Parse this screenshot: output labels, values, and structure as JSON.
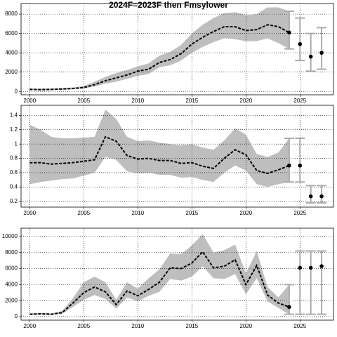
{
  "chart_data": [
    {
      "type": "line",
      "title": "2024F=2023F then Fmsylower",
      "x": [
        2000,
        2001,
        2002,
        2003,
        2004,
        2005,
        2006,
        2007,
        2008,
        2009,
        2010,
        2011,
        2012,
        2013,
        2014,
        2015,
        2016,
        2017,
        2018,
        2019,
        2020,
        2021,
        2022,
        2023,
        2024
      ],
      "values": [
        200,
        180,
        200,
        250,
        300,
        400,
        700,
        1100,
        1400,
        1700,
        2100,
        2300,
        3000,
        3300,
        3900,
        4900,
        5600,
        6200,
        6700,
        6700,
        6300,
        6400,
        6900,
        6700,
        6100
      ],
      "upper": [
        300,
        300,
        300,
        350,
        400,
        550,
        1000,
        1500,
        1900,
        2200,
        2600,
        2900,
        3700,
        4100,
        4800,
        6000,
        6900,
        7600,
        8100,
        8200,
        7900,
        8000,
        8700,
        8700,
        8300
      ],
      "lower": [
        150,
        120,
        150,
        180,
        220,
        300,
        500,
        800,
        1000,
        1300,
        1600,
        1800,
        2500,
        2700,
        3200,
        4000,
        4600,
        5100,
        5500,
        5400,
        5200,
        5200,
        5500,
        5000,
        4400
      ],
      "proj_x": [
        2025,
        2026,
        2027
      ],
      "proj_values": [
        4900,
        3600,
        4000
      ],
      "proj_lower": [
        3200,
        2100,
        2300
      ],
      "proj_upper": [
        7600,
        6000,
        6600
      ],
      "band_color": "#bebebe",
      "bar_color": "#aaaaaa",
      "color": "#000000",
      "xlim": [
        1999.2,
        2028.1
      ],
      "xticks": [
        2000,
        2005,
        2010,
        2015,
        2020,
        2025
      ],
      "ylim": [
        -350,
        9100
      ],
      "yticks": [
        0,
        2000,
        4000,
        6000,
        8000
      ],
      "grid": true
    },
    {
      "type": "line",
      "x": [
        2000,
        2001,
        2002,
        2003,
        2004,
        2005,
        2006,
        2007,
        2008,
        2009,
        2010,
        2011,
        2012,
        2013,
        2014,
        2015,
        2016,
        2017,
        2018,
        2019,
        2020,
        2021,
        2022,
        2023,
        2024
      ],
      "values": [
        0.74,
        0.74,
        0.72,
        0.73,
        0.74,
        0.76,
        0.78,
        1.1,
        1.04,
        0.84,
        0.79,
        0.8,
        0.77,
        0.77,
        0.73,
        0.74,
        0.69,
        0.66,
        0.8,
        0.92,
        0.85,
        0.63,
        0.59,
        0.64,
        0.7
      ],
      "upper": [
        1.27,
        1.2,
        1.1,
        1.08,
        1.08,
        1.09,
        1.1,
        1.48,
        1.35,
        1.1,
        1.04,
        1.05,
        1.02,
        1.0,
        0.98,
        1.0,
        0.95,
        0.92,
        1.05,
        1.22,
        1.13,
        0.86,
        0.82,
        0.88,
        1.08
      ],
      "lower": [
        0.44,
        0.47,
        0.49,
        0.51,
        0.52,
        0.56,
        0.6,
        0.82,
        0.78,
        0.62,
        0.59,
        0.6,
        0.57,
        0.57,
        0.53,
        0.54,
        0.5,
        0.47,
        0.6,
        0.7,
        0.63,
        0.44,
        0.4,
        0.44,
        0.47
      ],
      "proj_x": [
        2025,
        2026,
        2027
      ],
      "proj_values": [
        0.7,
        0.27,
        0.27
      ],
      "proj_lower": [
        0.47,
        0.18,
        0.18
      ],
      "proj_upper": [
        1.08,
        0.42,
        0.42
      ],
      "band_color": "#bebebe",
      "bar_color": "#aaaaaa",
      "color": "#000000",
      "xlim": [
        1999.2,
        2028.1
      ],
      "xticks": [
        2000,
        2005,
        2010,
        2015,
        2020,
        2025
      ],
      "ylim": [
        0.12,
        1.54
      ],
      "yticks": [
        0.2,
        0.4,
        0.6,
        0.8,
        1.0,
        1.2,
        1.4
      ],
      "grid": true
    },
    {
      "type": "line",
      "x": [
        2000,
        2001,
        2002,
        2003,
        2004,
        2005,
        2006,
        2007,
        2008,
        2009,
        2010,
        2011,
        2012,
        2013,
        2014,
        2015,
        2016,
        2017,
        2018,
        2019,
        2020,
        2021,
        2022,
        2023,
        2024
      ],
      "values": [
        300,
        350,
        300,
        500,
        1700,
        3000,
        3700,
        3100,
        1500,
        3200,
        2600,
        3400,
        4300,
        6100,
        6000,
        6700,
        8100,
        6100,
        6300,
        7100,
        4000,
        6400,
        2700,
        1700,
        1200
      ],
      "upper": [
        400,
        450,
        400,
        700,
        2300,
        4300,
        5000,
        4300,
        2100,
        4300,
        3500,
        4800,
        5900,
        7900,
        7800,
        8900,
        10300,
        8000,
        8300,
        9000,
        5400,
        8200,
        3700,
        2400,
        4000
      ],
      "lower": [
        200,
        250,
        200,
        350,
        1200,
        2100,
        2700,
        2200,
        1000,
        2400,
        1900,
        2600,
        3100,
        4700,
        4500,
        5000,
        6300,
        4800,
        4700,
        5300,
        2800,
        4800,
        1900,
        1100,
        300
      ],
      "proj_x": [
        2025,
        2026,
        2027
      ],
      "proj_values": [
        6100,
        6100,
        6300
      ],
      "proj_lower": [
        300,
        300,
        300
      ],
      "proj_upper": [
        8200,
        8200,
        8200
      ],
      "band_color": "#bebebe",
      "bar_color": "#aaaaaa",
      "color": "#000000",
      "xlim": [
        1999.2,
        2028.1
      ],
      "xticks": [
        2000,
        2005,
        2010,
        2015,
        2020,
        2025
      ],
      "ylim": [
        -440,
        11050
      ],
      "yticks": [
        0,
        2000,
        4000,
        6000,
        8000,
        10000
      ],
      "grid": true
    }
  ]
}
